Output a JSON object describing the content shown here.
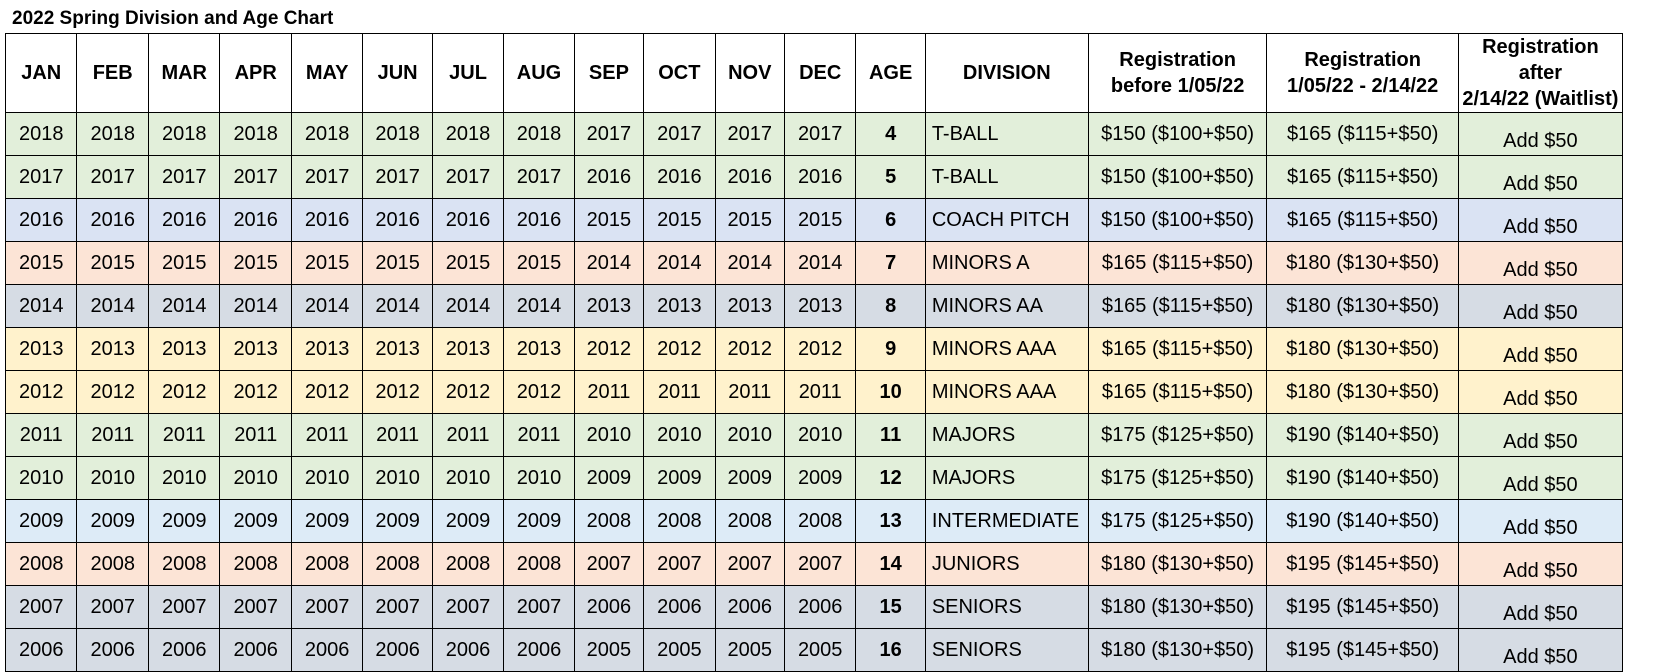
{
  "title": "2022 Spring Division and Age Chart",
  "headers": {
    "months": [
      "JAN",
      "FEB",
      "MAR",
      "APR",
      "MAY",
      "JUN",
      "JUL",
      "AUG",
      "SEP",
      "OCT",
      "NOV",
      "DEC"
    ],
    "age": "AGE",
    "division": "DIVISION",
    "reg_early_line1": "Registration",
    "reg_early_line2": "before 1/05/22",
    "reg_mid_line1": "Registration",
    "reg_mid_line2": "1/05/22 - 2/14/22",
    "reg_late_line1": "Registration after",
    "reg_late_line2": "2/14/22 (Waitlist)"
  },
  "colors": {
    "green": "#e2efda",
    "blue": "#dae3f3",
    "peach": "#fce4d6",
    "gray": "#d6dce4",
    "yellow": "#fff2cc",
    "lightblue": "#ddebf7"
  },
  "rows": [
    {
      "years": [
        "2018",
        "2018",
        "2018",
        "2018",
        "2018",
        "2018",
        "2018",
        "2018",
        "2017",
        "2017",
        "2017",
        "2017"
      ],
      "age": "4",
      "division": "T-BALL",
      "fee_early": "$150 ($100+$50)",
      "fee_mid": "$165 ($115+$50)",
      "fee_late": "Add $50",
      "color": "green"
    },
    {
      "years": [
        "2017",
        "2017",
        "2017",
        "2017",
        "2017",
        "2017",
        "2017",
        "2017",
        "2016",
        "2016",
        "2016",
        "2016"
      ],
      "age": "5",
      "division": "T-BALL",
      "fee_early": "$150 ($100+$50)",
      "fee_mid": "$165 ($115+$50)",
      "fee_late": "Add $50",
      "color": "green"
    },
    {
      "years": [
        "2016",
        "2016",
        "2016",
        "2016",
        "2016",
        "2016",
        "2016",
        "2016",
        "2015",
        "2015",
        "2015",
        "2015"
      ],
      "age": "6",
      "division": "COACH PITCH",
      "fee_early": "$150 ($100+$50)",
      "fee_mid": "$165 ($115+$50)",
      "fee_late": "Add $50",
      "color": "blue"
    },
    {
      "years": [
        "2015",
        "2015",
        "2015",
        "2015",
        "2015",
        "2015",
        "2015",
        "2015",
        "2014",
        "2014",
        "2014",
        "2014"
      ],
      "age": "7",
      "division": "MINORS A",
      "fee_early": "$165 ($115+$50)",
      "fee_mid": "$180 ($130+$50)",
      "fee_late": "Add $50",
      "color": "peach"
    },
    {
      "years": [
        "2014",
        "2014",
        "2014",
        "2014",
        "2014",
        "2014",
        "2014",
        "2014",
        "2013",
        "2013",
        "2013",
        "2013"
      ],
      "age": "8",
      "division": "MINORS AA",
      "fee_early": "$165 ($115+$50)",
      "fee_mid": "$180 ($130+$50)",
      "fee_late": "Add $50",
      "color": "gray"
    },
    {
      "years": [
        "2013",
        "2013",
        "2013",
        "2013",
        "2013",
        "2013",
        "2013",
        "2013",
        "2012",
        "2012",
        "2012",
        "2012"
      ],
      "age": "9",
      "division": "MINORS AAA",
      "fee_early": "$165 ($115+$50)",
      "fee_mid": "$180 ($130+$50)",
      "fee_late": "Add $50",
      "color": "yellow"
    },
    {
      "years": [
        "2012",
        "2012",
        "2012",
        "2012",
        "2012",
        "2012",
        "2012",
        "2012",
        "2011",
        "2011",
        "2011",
        "2011"
      ],
      "age": "10",
      "division": "MINORS AAA",
      "fee_early": "$165 ($115+$50)",
      "fee_mid": "$180 ($130+$50)",
      "fee_late": "Add $50",
      "color": "yellow"
    },
    {
      "years": [
        "2011",
        "2011",
        "2011",
        "2011",
        "2011",
        "2011",
        "2011",
        "2011",
        "2010",
        "2010",
        "2010",
        "2010"
      ],
      "age": "11",
      "division": "MAJORS",
      "fee_early": "$175 ($125+$50)",
      "fee_mid": "$190 ($140+$50)",
      "fee_late": "Add $50",
      "color": "green"
    },
    {
      "years": [
        "2010",
        "2010",
        "2010",
        "2010",
        "2010",
        "2010",
        "2010",
        "2010",
        "2009",
        "2009",
        "2009",
        "2009"
      ],
      "age": "12",
      "division": "MAJORS",
      "fee_early": "$175 ($125+$50)",
      "fee_mid": "$190 ($140+$50)",
      "fee_late": "Add $50",
      "color": "green"
    },
    {
      "years": [
        "2009",
        "2009",
        "2009",
        "2009",
        "2009",
        "2009",
        "2009",
        "2009",
        "2008",
        "2008",
        "2008",
        "2008"
      ],
      "age": "13",
      "division": "INTERMEDIATE",
      "fee_early": "$175 ($125+$50)",
      "fee_mid": "$190 ($140+$50)",
      "fee_late": "Add $50",
      "color": "lightblue"
    },
    {
      "years": [
        "2008",
        "2008",
        "2008",
        "2008",
        "2008",
        "2008",
        "2008",
        "2008",
        "2007",
        "2007",
        "2007",
        "2007"
      ],
      "age": "14",
      "division": "JUNIORS",
      "fee_early": "$180 ($130+$50)",
      "fee_mid": "$195 ($145+$50)",
      "fee_late": "Add $50",
      "color": "peach"
    },
    {
      "years": [
        "2007",
        "2007",
        "2007",
        "2007",
        "2007",
        "2007",
        "2007",
        "2007",
        "2006",
        "2006",
        "2006",
        "2006"
      ],
      "age": "15",
      "division": "SENIORS",
      "fee_early": "$180 ($130+$50)",
      "fee_mid": "$195 ($145+$50)",
      "fee_late": "Add $50",
      "color": "gray"
    },
    {
      "years": [
        "2006",
        "2006",
        "2006",
        "2006",
        "2006",
        "2006",
        "2006",
        "2006",
        "2005",
        "2005",
        "2005",
        "2005"
      ],
      "age": "16",
      "division": "SENIORS",
      "fee_early": "$180 ($130+$50)",
      "fee_mid": "$195 ($145+$50)",
      "fee_late": "Add $50",
      "color": "gray"
    }
  ]
}
